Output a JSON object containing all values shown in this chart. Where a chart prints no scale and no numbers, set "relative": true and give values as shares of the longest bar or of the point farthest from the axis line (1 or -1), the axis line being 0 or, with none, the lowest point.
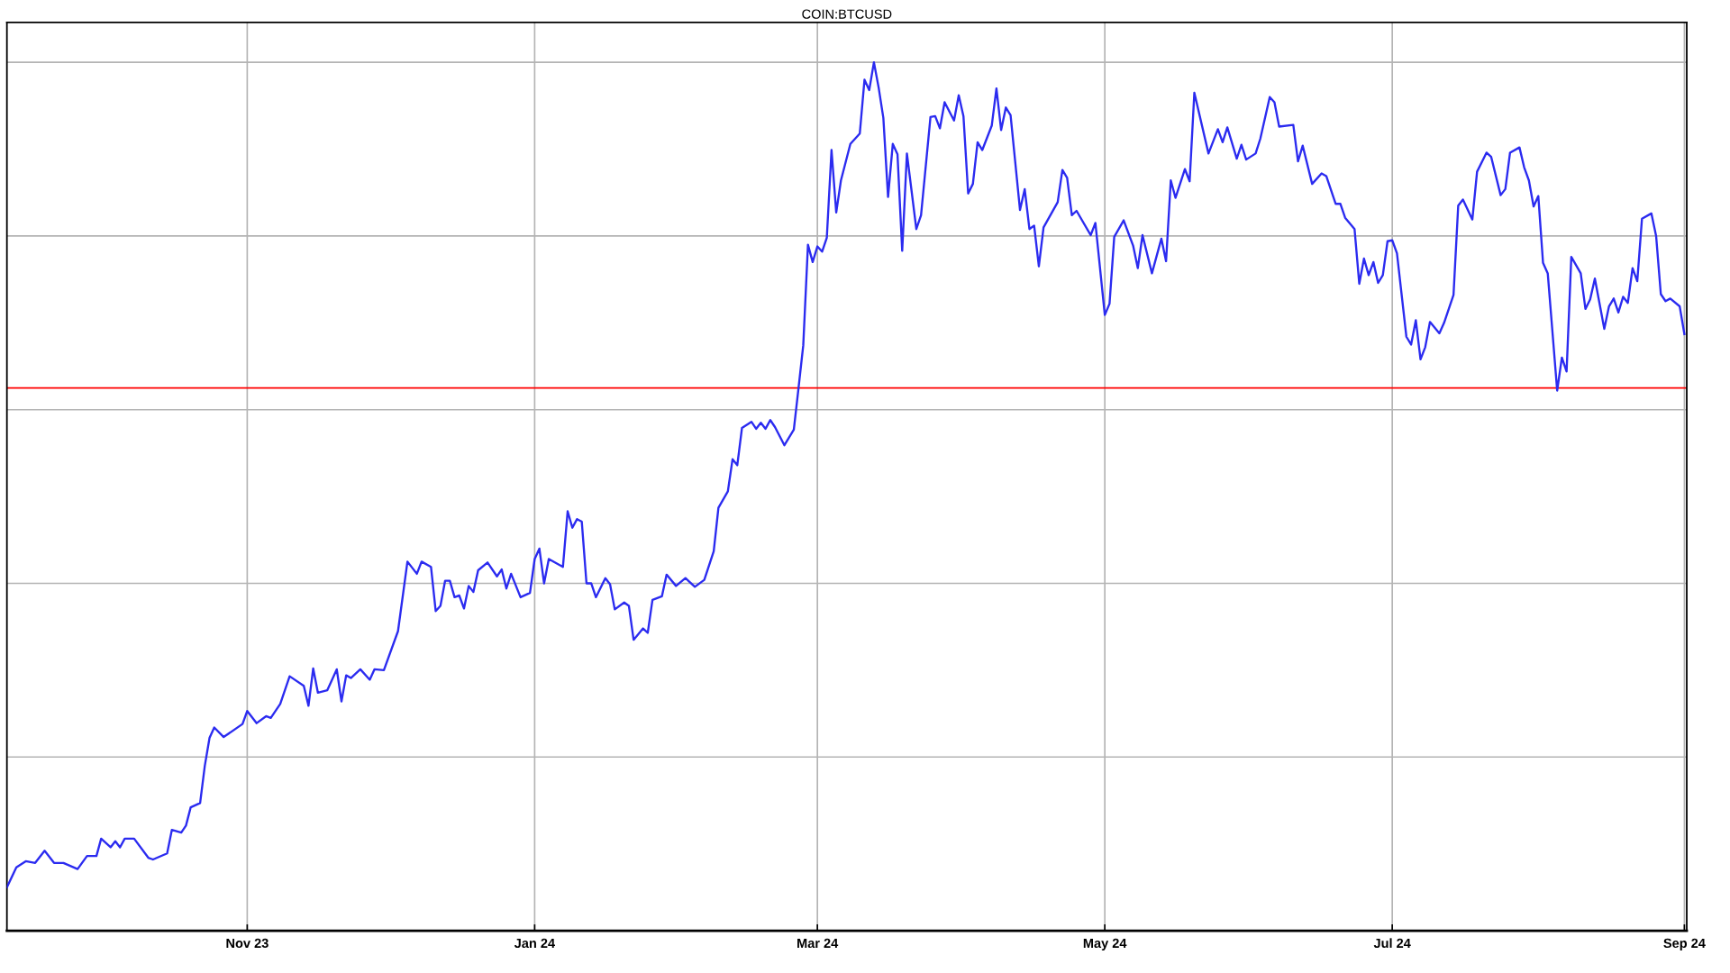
{
  "chart_data": {
    "type": "line",
    "title": "COIN:BTCUSD",
    "relative": true,
    "tick_labels": "x",
    "grid": true,
    "xlim": [
      "2023-09-11",
      "2024-09-01T12:00"
    ],
    "xticks": [
      {
        "value": "2023-11-01",
        "label": "Nov 23"
      },
      {
        "value": "2024-01-01",
        "label": "Jan 24"
      },
      {
        "value": "2024-03-01",
        "label": "Mar 24"
      },
      {
        "value": "2024-05-01",
        "label": "May 24"
      },
      {
        "value": "2024-07-01",
        "label": "Jul 24"
      },
      {
        "value": "2024-09-01",
        "label": "Sep 24"
      }
    ],
    "ref_lines": [
      {
        "axis": "y",
        "value": 0.625,
        "color": "#ff0000"
      }
    ],
    "x": [
      "2023-09-11",
      "2023-09-13",
      "2023-09-15",
      "2023-09-17",
      "2023-09-19",
      "2023-09-21",
      "2023-09-23",
      "2023-09-26",
      "2023-09-28",
      "2023-09-30",
      "2023-10-01",
      "2023-10-03",
      "2023-10-04",
      "2023-10-05",
      "2023-10-06",
      "2023-10-08",
      "2023-10-11",
      "2023-10-12",
      "2023-10-15",
      "2023-10-16",
      "2023-10-18",
      "2023-10-19",
      "2023-10-20",
      "2023-10-22",
      "2023-10-23",
      "2023-10-24",
      "2023-10-25",
      "2023-10-27",
      "2023-10-31",
      "2023-11-01",
      "2023-11-03",
      "2023-11-05",
      "2023-11-06",
      "2023-11-08",
      "2023-11-10",
      "2023-11-13",
      "2023-11-14",
      "2023-11-15",
      "2023-11-16",
      "2023-11-18",
      "2023-11-20",
      "2023-11-21",
      "2023-11-22",
      "2023-11-23",
      "2023-11-25",
      "2023-11-27",
      "2023-11-28",
      "2023-11-30",
      "2023-12-03",
      "2023-12-05",
      "2023-12-07",
      "2023-12-08",
      "2023-12-10",
      "2023-12-11",
      "2023-12-12",
      "2023-12-13",
      "2023-12-14",
      "2023-12-15",
      "2023-12-16",
      "2023-12-17",
      "2023-12-18",
      "2023-12-19",
      "2023-12-20",
      "2023-12-22",
      "2023-12-24",
      "2023-12-25",
      "2023-12-26",
      "2023-12-27",
      "2023-12-29",
      "2023-12-31",
      "2024-01-01",
      "2024-01-02",
      "2024-01-03",
      "2024-01-04",
      "2024-01-07",
      "2024-01-08",
      "2024-01-09",
      "2024-01-10",
      "2024-01-11",
      "2024-01-12",
      "2024-01-13",
      "2024-01-14",
      "2024-01-16",
      "2024-01-17",
      "2024-01-18",
      "2024-01-20",
      "2024-01-21",
      "2024-01-22",
      "2024-01-24",
      "2024-01-25",
      "2024-01-26",
      "2024-01-28",
      "2024-01-29",
      "2024-01-31",
      "2024-02-02",
      "2024-02-04",
      "2024-02-06",
      "2024-02-08",
      "2024-02-09",
      "2024-02-11",
      "2024-02-12",
      "2024-02-13",
      "2024-02-14",
      "2024-02-16",
      "2024-02-17",
      "2024-02-18",
      "2024-02-19",
      "2024-02-20",
      "2024-02-21",
      "2024-02-23",
      "2024-02-25",
      "2024-02-26",
      "2024-02-27",
      "2024-02-28",
      "2024-02-29",
      "2024-03-01",
      "2024-03-02",
      "2024-03-03",
      "2024-03-04",
      "2024-03-05",
      "2024-03-06",
      "2024-03-08",
      "2024-03-10",
      "2024-03-11",
      "2024-03-12",
      "2024-03-13",
      "2024-03-14",
      "2024-03-15",
      "2024-03-16",
      "2024-03-17",
      "2024-03-18",
      "2024-03-19",
      "2024-03-20",
      "2024-03-22",
      "2024-03-23",
      "2024-03-25",
      "2024-03-26",
      "2024-03-27",
      "2024-03-28",
      "2024-03-30",
      "2024-03-31",
      "2024-04-01",
      "2024-04-02",
      "2024-04-03",
      "2024-04-04",
      "2024-04-05",
      "2024-04-07",
      "2024-04-08",
      "2024-04-09",
      "2024-04-10",
      "2024-04-11",
      "2024-04-13",
      "2024-04-14",
      "2024-04-15",
      "2024-04-16",
      "2024-04-17",
      "2024-04-18",
      "2024-04-21",
      "2024-04-22",
      "2024-04-23",
      "2024-04-24",
      "2024-04-25",
      "2024-04-28",
      "2024-04-29",
      "2024-05-01",
      "2024-05-02",
      "2024-05-03",
      "2024-05-05",
      "2024-05-07",
      "2024-05-08",
      "2024-05-09",
      "2024-05-11",
      "2024-05-13",
      "2024-05-14",
      "2024-05-15",
      "2024-05-16",
      "2024-05-18",
      "2024-05-19",
      "2024-05-20",
      "2024-05-23",
      "2024-05-25",
      "2024-05-26",
      "2024-05-27",
      "2024-05-29",
      "2024-05-30",
      "2024-05-31",
      "2024-06-02",
      "2024-06-03",
      "2024-06-05",
      "2024-06-06",
      "2024-06-07",
      "2024-06-10",
      "2024-06-11",
      "2024-06-12",
      "2024-06-14",
      "2024-06-16",
      "2024-06-17",
      "2024-06-19",
      "2024-06-20",
      "2024-06-21",
      "2024-06-23",
      "2024-06-24",
      "2024-06-25",
      "2024-06-26",
      "2024-06-27",
      "2024-06-28",
      "2024-06-29",
      "2024-06-30",
      "2024-07-01",
      "2024-07-02",
      "2024-07-04",
      "2024-07-05",
      "2024-07-06",
      "2024-07-07",
      "2024-07-08",
      "2024-07-09",
      "2024-07-11",
      "2024-07-12",
      "2024-07-14",
      "2024-07-15",
      "2024-07-16",
      "2024-07-18",
      "2024-07-19",
      "2024-07-21",
      "2024-07-22",
      "2024-07-24",
      "2024-07-25",
      "2024-07-26",
      "2024-07-28",
      "2024-07-29",
      "2024-07-30",
      "2024-07-31",
      "2024-08-01",
      "2024-08-02",
      "2024-08-03",
      "2024-08-05",
      "2024-08-06",
      "2024-08-07",
      "2024-08-08",
      "2024-08-10",
      "2024-08-11",
      "2024-08-12",
      "2024-08-13",
      "2024-08-15",
      "2024-08-16",
      "2024-08-17",
      "2024-08-18",
      "2024-08-19",
      "2024-08-20",
      "2024-08-21",
      "2024-08-22",
      "2024-08-23",
      "2024-08-25",
      "2024-08-26",
      "2024-08-27",
      "2024-08-28",
      "2024-08-29",
      "2024-08-31",
      "2024-09-01"
    ],
    "series": [
      {
        "color": "#2b2bf0",
        "values": [
          0.05,
          0.073,
          0.08,
          0.078,
          0.092,
          0.078,
          0.078,
          0.071,
          0.086,
          0.086,
          0.106,
          0.096,
          0.103,
          0.096,
          0.106,
          0.106,
          0.084,
          0.082,
          0.089,
          0.116,
          0.113,
          0.121,
          0.142,
          0.147,
          0.19,
          0.222,
          0.234,
          0.223,
          0.238,
          0.253,
          0.239,
          0.247,
          0.245,
          0.261,
          0.293,
          0.282,
          0.259,
          0.302,
          0.274,
          0.277,
          0.301,
          0.264,
          0.294,
          0.291,
          0.301,
          0.289,
          0.301,
          0.3,
          0.345,
          0.425,
          0.411,
          0.425,
          0.419,
          0.368,
          0.374,
          0.403,
          0.403,
          0.384,
          0.386,
          0.371,
          0.397,
          0.39,
          0.415,
          0.424,
          0.408,
          0.416,
          0.394,
          0.411,
          0.384,
          0.389,
          0.428,
          0.44,
          0.4,
          0.428,
          0.419,
          0.483,
          0.464,
          0.474,
          0.471,
          0.4,
          0.4,
          0.384,
          0.406,
          0.399,
          0.37,
          0.378,
          0.374,
          0.335,
          0.348,
          0.343,
          0.381,
          0.385,
          0.41,
          0.397,
          0.406,
          0.396,
          0.404,
          0.437,
          0.487,
          0.506,
          0.543,
          0.536,
          0.579,
          0.586,
          0.578,
          0.585,
          0.578,
          0.588,
          0.58,
          0.559,
          0.577,
          0.625,
          0.674,
          0.79,
          0.77,
          0.788,
          0.782,
          0.798,
          0.899,
          0.827,
          0.864,
          0.906,
          0.918,
          0.98,
          0.968,
          1.0,
          0.971,
          0.936,
          0.845,
          0.906,
          0.894,
          0.783,
          0.895,
          0.808,
          0.824,
          0.937,
          0.938,
          0.924,
          0.954,
          0.933,
          0.962,
          0.938,
          0.849,
          0.86,
          0.908,
          0.899,
          0.927,
          0.97,
          0.922,
          0.948,
          0.939,
          0.83,
          0.854,
          0.808,
          0.812,
          0.765,
          0.81,
          0.839,
          0.876,
          0.867,
          0.824,
          0.829,
          0.801,
          0.815,
          0.709,
          0.722,
          0.799,
          0.818,
          0.789,
          0.763,
          0.801,
          0.757,
          0.797,
          0.771,
          0.864,
          0.844,
          0.877,
          0.863,
          0.965,
          0.895,
          0.923,
          0.908,
          0.925,
          0.889,
          0.905,
          0.888,
          0.895,
          0.912,
          0.96,
          0.954,
          0.926,
          0.928,
          0.886,
          0.904,
          0.86,
          0.872,
          0.869,
          0.837,
          0.837,
          0.821,
          0.808,
          0.745,
          0.774,
          0.755,
          0.77,
          0.746,
          0.755,
          0.794,
          0.795,
          0.78,
          0.684,
          0.675,
          0.703,
          0.658,
          0.672,
          0.701,
          0.688,
          0.7,
          0.732,
          0.835,
          0.842,
          0.819,
          0.874,
          0.896,
          0.891,
          0.847,
          0.854,
          0.896,
          0.902,
          0.879,
          0.864,
          0.834,
          0.846,
          0.769,
          0.757,
          0.622,
          0.66,
          0.644,
          0.776,
          0.757,
          0.716,
          0.727,
          0.751,
          0.693,
          0.719,
          0.728,
          0.712,
          0.73,
          0.723,
          0.763,
          0.748,
          0.82,
          0.826,
          0.8,
          0.733,
          0.725,
          0.728,
          0.719,
          0.687
        ]
      }
    ]
  }
}
